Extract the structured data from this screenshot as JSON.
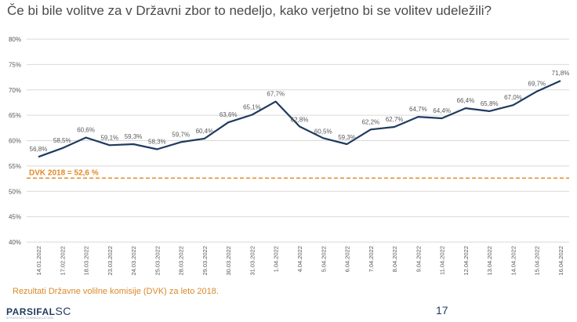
{
  "title": "Če bi bile volitve za v Državni zbor to nedeljo, kako verjetno bi se volitev udeležili?",
  "footnote": "Rezultati Državne volilne komisije (DVK) za leto 2018.",
  "page_number": "17",
  "logo": {
    "main": "PARSIFAL",
    "suffix": "SC",
    "tagline": "STRATEGIC COMMUNICATION"
  },
  "colors": {
    "line": "#1f3a5f",
    "reference": "#e08a2a",
    "grid": "#d9d9d9",
    "text": "#595959"
  },
  "chart_data": {
    "type": "line",
    "categories": [
      "14.01.2022",
      "17.02.2022",
      "18.03.2022",
      "23.03.2022",
      "24.03.2022",
      "25.03.2022",
      "28.03.2022",
      "29.03.2022",
      "30.03.2022",
      "31.03.2022",
      "1.04.2022",
      "4.04.2022",
      "5.04.2022",
      "6.04.2022",
      "7.04.2022",
      "8.04.2022",
      "9.04.2022",
      "11.04.2022",
      "12.04.2022",
      "13.04.2022",
      "14.04.2022",
      "15.04.2022",
      "16.04.2022"
    ],
    "values": [
      56.8,
      58.5,
      60.6,
      59.1,
      59.3,
      58.3,
      59.7,
      60.4,
      63.6,
      65.1,
      67.7,
      62.8,
      60.5,
      59.3,
      62.2,
      62.7,
      64.7,
      64.4,
      66.4,
      65.8,
      67.0,
      69.7,
      71.8
    ],
    "value_labels": [
      "56,8%",
      "58,5%",
      "60,6%",
      "59,1%",
      "59,3%",
      "58,3%",
      "59,7%",
      "60,4%",
      "63,6%",
      "65,1%",
      "67,7%",
      "62,8%",
      "60,5%",
      "59,3%",
      "62,2%",
      "62,7%",
      "64,7%",
      "64,4%",
      "66,4%",
      "65,8%",
      "67,0%",
      "69,7%",
      "71,8%"
    ],
    "ylim": [
      40,
      80
    ],
    "yticks": [
      40,
      45,
      50,
      55,
      60,
      65,
      70,
      75,
      80
    ],
    "ytick_labels": [
      "40%",
      "45%",
      "50%",
      "55%",
      "60%",
      "65%",
      "70%",
      "75%",
      "80%"
    ],
    "grid": true,
    "reference_line": {
      "value": 52.6,
      "label": "DVK 2018 = 52,6 %"
    },
    "xlabel": "",
    "ylabel": ""
  }
}
